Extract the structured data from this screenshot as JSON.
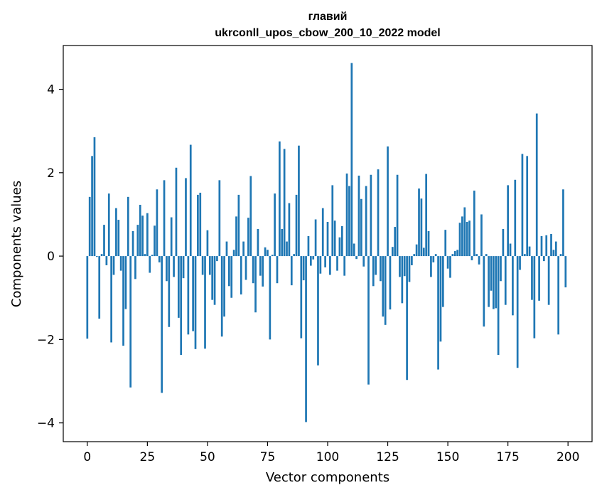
{
  "chart_data": {
    "type": "bar",
    "title": "главий",
    "subtitle": "ukrconll_upos_cbow_200_10_2022 model",
    "xlabel": "Vector components",
    "ylabel": "Components values",
    "xlim": [
      -10,
      210
    ],
    "ylim": [
      -4.45,
      5.05
    ],
    "xticks": [
      0,
      25,
      50,
      75,
      100,
      125,
      150,
      175,
      200
    ],
    "yticks": [
      -4,
      -2,
      0,
      2,
      4
    ],
    "grid": false,
    "bar_color": "#1f77b4",
    "x": [
      0,
      1,
      2,
      3,
      4,
      5,
      6,
      7,
      8,
      9,
      10,
      11,
      12,
      13,
      14,
      15,
      16,
      17,
      18,
      19,
      20,
      21,
      22,
      23,
      24,
      25,
      26,
      27,
      28,
      29,
      30,
      31,
      32,
      33,
      34,
      35,
      36,
      37,
      38,
      39,
      40,
      41,
      42,
      43,
      44,
      45,
      46,
      47,
      48,
      49,
      50,
      51,
      52,
      53,
      54,
      55,
      56,
      57,
      58,
      59,
      60,
      61,
      62,
      63,
      64,
      65,
      66,
      67,
      68,
      69,
      70,
      71,
      72,
      73,
      74,
      75,
      76,
      77,
      78,
      79,
      80,
      81,
      82,
      83,
      84,
      85,
      86,
      87,
      88,
      89,
      90,
      91,
      92,
      93,
      94,
      95,
      96,
      97,
      98,
      99,
      100,
      101,
      102,
      103,
      104,
      105,
      106,
      107,
      108,
      109,
      110,
      111,
      112,
      113,
      114,
      115,
      116,
      117,
      118,
      119,
      120,
      121,
      122,
      123,
      124,
      125,
      126,
      127,
      128,
      129,
      130,
      131,
      132,
      133,
      134,
      135,
      136,
      137,
      138,
      139,
      140,
      141,
      142,
      143,
      144,
      145,
      146,
      147,
      148,
      149,
      150,
      151,
      152,
      153,
      154,
      155,
      156,
      157,
      158,
      159,
      160,
      161,
      162,
      163,
      164,
      165,
      166,
      167,
      168,
      169,
      170,
      171,
      172,
      173,
      174,
      175,
      176,
      177,
      178,
      179,
      180,
      181,
      182,
      183,
      184,
      185,
      186,
      187,
      188,
      189,
      190,
      191,
      192,
      193,
      194,
      195,
      196,
      197,
      198,
      199
    ],
    "values": [
      -1.98,
      1.42,
      2.4,
      2.85,
      -0.02,
      -1.5,
      0.05,
      0.75,
      -0.22,
      1.5,
      -2.07,
      -0.45,
      1.15,
      0.87,
      -0.35,
      -2.15,
      -1.27,
      1.42,
      -3.15,
      0.6,
      -0.55,
      0.75,
      1.23,
      0.97,
      0.05,
      1.03,
      -0.4,
      0.03,
      0.73,
      1.6,
      -0.15,
      -3.28,
      1.82,
      -0.6,
      -1.7,
      0.93,
      -0.5,
      2.12,
      -1.48,
      -2.37,
      -0.53,
      1.87,
      -1.88,
      2.67,
      -1.8,
      -2.23,
      1.47,
      1.52,
      -0.45,
      -2.22,
      0.62,
      -0.45,
      -1.05,
      -1.17,
      -0.12,
      1.82,
      -1.93,
      -1.45,
      0.35,
      -0.72,
      -1.0,
      0.15,
      0.95,
      1.47,
      -0.92,
      0.35,
      -0.57,
      0.92,
      1.92,
      -0.65,
      -1.35,
      0.65,
      -0.47,
      -0.73,
      0.21,
      0.15,
      -2.0,
      0.03,
      1.5,
      -0.65,
      2.75,
      0.65,
      2.57,
      0.35,
      1.27,
      -0.7,
      0.05,
      1.47,
      2.65,
      -1.97,
      -0.58,
      -3.98,
      0.48,
      -0.23,
      -0.08,
      0.88,
      -2.62,
      -0.42,
      1.15,
      -0.27,
      0.82,
      -0.45,
      1.7,
      0.85,
      -0.35,
      0.45,
      0.72,
      -0.47,
      1.98,
      1.68,
      4.63,
      0.3,
      -0.07,
      1.93,
      1.37,
      -0.25,
      1.68,
      -3.08,
      1.95,
      -0.72,
      -0.45,
      2.08,
      -0.6,
      -1.45,
      -1.65,
      2.63,
      -1.28,
      0.22,
      0.7,
      1.95,
      -0.5,
      -1.13,
      -0.48,
      -2.97,
      -0.62,
      -0.22,
      0.05,
      0.28,
      1.62,
      1.38,
      0.2,
      1.97,
      0.6,
      -0.5,
      -0.15,
      0.05,
      -2.72,
      -2.05,
      -1.22,
      0.63,
      -0.3,
      -0.52,
      0.05,
      0.12,
      0.15,
      0.8,
      0.95,
      1.17,
      0.82,
      0.85,
      -0.1,
      1.57,
      0.05,
      -0.2,
      1.0,
      -1.69,
      0.05,
      -1.22,
      -0.83,
      -1.27,
      -1.25,
      -2.37,
      -0.6,
      0.65,
      -1.17,
      1.7,
      0.3,
      -1.42,
      1.83,
      -2.68,
      -0.33,
      2.45,
      0.05,
      2.4,
      0.23,
      -1.05,
      -1.97,
      3.42,
      -1.07,
      0.48,
      -0.12,
      0.5,
      -1.17,
      0.53,
      0.15,
      0.35,
      -1.88,
      0.05,
      1.6,
      -0.75
    ]
  }
}
